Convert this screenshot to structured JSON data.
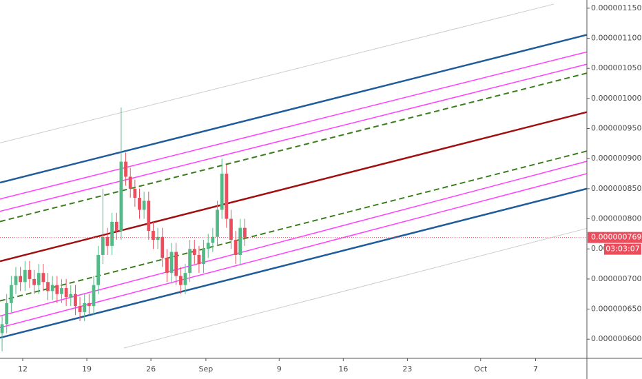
{
  "chart_data": {
    "type": "candlestick",
    "x": [
      -2.25,
      -1.75,
      -1.25,
      -0.75,
      -0.25,
      0.25,
      0.75,
      1.25,
      1.75,
      2.25,
      2.75,
      3.25,
      3.75,
      4.25,
      4.75,
      5.25,
      5.75,
      6.25,
      6.75,
      7.25,
      7.75,
      8.25,
      8.75,
      9.25,
      9.75,
      10.25,
      10.75,
      11.25,
      11.75,
      12.25,
      12.75,
      13.25,
      13.75,
      14.25,
      14.75,
      15.25,
      15.75,
      16.25,
      16.75,
      17.25,
      17.75,
      18.25,
      18.75,
      19.25,
      19.75,
      20.25,
      20.75,
      21.25,
      21.75,
      22.25,
      22.75,
      23.25,
      23.75,
      24.25
    ],
    "open": [
      6.1e-07,
      6.25e-07,
      6.6e-07,
      6.9e-07,
      7.05e-07,
      6.95e-07,
      7.15e-07,
      7e-07,
      6.9e-07,
      7.1e-07,
      6.95e-07,
      6.8e-07,
      6.9e-07,
      6.75e-07,
      6.85e-07,
      6.7e-07,
      6.75e-07,
      6.55e-07,
      6.45e-07,
      6.6e-07,
      6.55e-07,
      6.9e-07,
      7.4e-07,
      7.7e-07,
      7.55e-07,
      7.95e-07,
      7.8e-07,
      8.95e-07,
      8.7e-07,
      8.5e-07,
      8.35e-07,
      8.15e-07,
      8.3e-07,
      7.8e-07,
      7.65e-07,
      7.7e-07,
      7.35e-07,
      7.1e-07,
      7.45e-07,
      7.05e-07,
      6.9e-07,
      7.1e-07,
      7.5e-07,
      7.4e-07,
      7.25e-07,
      7.5e-07,
      7.6e-07,
      7.7e-07,
      8.15e-07,
      8.75e-07,
      8e-07,
      7.65e-07,
      7.4e-07,
      7.85e-07
    ],
    "high": [
      6.4e-07,
      6.75e-07,
      7.05e-07,
      7.2e-07,
      7.2e-07,
      7.3e-07,
      7.3e-07,
      7.15e-07,
      7.25e-07,
      7.25e-07,
      7.1e-07,
      7.05e-07,
      7.05e-07,
      7e-07,
      7e-07,
      6.9e-07,
      6.9e-07,
      6.7e-07,
      6.75e-07,
      6.75e-07,
      7.05e-07,
      7.55e-07,
      8.5e-07,
      7.85e-07,
      8.1e-07,
      8.1e-07,
      9.85e-07,
      9.1e-07,
      8.85e-07,
      8.65e-07,
      8.5e-07,
      8.45e-07,
      8.45e-07,
      7.95e-07,
      7.85e-07,
      7.85e-07,
      7.5e-07,
      7.6e-07,
      7.6e-07,
      7.2e-07,
      7.25e-07,
      7.65e-07,
      7.65e-07,
      7.55e-07,
      7.65e-07,
      7.75e-07,
      7.85e-07,
      8.3e-07,
      9e-07,
      8.9e-07,
      8.15e-07,
      7.8e-07,
      8e-07,
      8e-07
    ],
    "low": [
      5.8e-07,
      6.1e-07,
      6.45e-07,
      6.75e-07,
      6.8e-07,
      6.8e-07,
      6.85e-07,
      6.75e-07,
      6.75e-07,
      6.8e-07,
      6.65e-07,
      6.65e-07,
      6.6e-07,
      6.6e-07,
      6.55e-07,
      6.55e-07,
      6.4e-07,
      6.3e-07,
      6.3e-07,
      6.4e-07,
      6.4e-07,
      6.75e-07,
      7.25e-07,
      7.4e-07,
      7.4e-07,
      7.65e-07,
      7.65e-07,
      8.55e-07,
      8.35e-07,
      8.2e-07,
      8e-07,
      8e-07,
      7.65e-07,
      7.5e-07,
      7.5e-07,
      7.2e-07,
      6.95e-07,
      6.95e-07,
      6.9e-07,
      6.75e-07,
      6.75e-07,
      6.95e-07,
      7.25e-07,
      7.1e-07,
      7.1e-07,
      7.35e-07,
      7.45e-07,
      7.55e-07,
      8e-07,
      7.85e-07,
      7.5e-07,
      7.25e-07,
      7.25e-07,
      7.55e-07
    ],
    "close": [
      6.25e-07,
      6.6e-07,
      6.9e-07,
      7.05e-07,
      6.95e-07,
      7.15e-07,
      7e-07,
      6.9e-07,
      7.1e-07,
      6.95e-07,
      6.8e-07,
      6.9e-07,
      6.75e-07,
      6.85e-07,
      6.7e-07,
      6.75e-07,
      6.55e-07,
      6.45e-07,
      6.6e-07,
      6.55e-07,
      6.9e-07,
      7.4e-07,
      7.7e-07,
      7.55e-07,
      7.95e-07,
      7.8e-07,
      8.95e-07,
      8.7e-07,
      8.5e-07,
      8.35e-07,
      8.15e-07,
      8.3e-07,
      7.8e-07,
      7.65e-07,
      7.7e-07,
      7.35e-07,
      7.1e-07,
      7.45e-07,
      7.05e-07,
      6.9e-07,
      7.1e-07,
      7.5e-07,
      7.4e-07,
      7.25e-07,
      7.5e-07,
      7.6e-07,
      7.7e-07,
      8.15e-07,
      8.75e-07,
      8e-07,
      7.65e-07,
      7.4e-07,
      7.85e-07,
      7.69e-07
    ],
    "up_color": "#53b987",
    "down_color": "#eb4d5c",
    "xlim": [
      -2.48,
      61.6
    ],
    "xticks": [
      {
        "value": 0,
        "label": "12"
      },
      {
        "value": 7,
        "label": "19"
      },
      {
        "value": 14,
        "label": "26"
      },
      {
        "value": 20,
        "label": "Sep"
      },
      {
        "value": 28,
        "label": "9"
      },
      {
        "value": 35,
        "label": "16"
      },
      {
        "value": 42,
        "label": "23"
      },
      {
        "value": 50,
        "label": "Oct"
      },
      {
        "value": 56,
        "label": "7"
      }
    ],
    "ylim": [
      5.682e-07,
      1.1636e-06
    ],
    "yticks": [
      {
        "value": 6e-07,
        "label": "0.0000006000"
      },
      {
        "value": 6.5e-07,
        "label": "0.0000006500"
      },
      {
        "value": 7e-07,
        "label": "0.0000007000"
      },
      {
        "value": 7.5e-07,
        "label": "0.0000007500"
      },
      {
        "value": 8e-07,
        "label": "0.0000008000"
      },
      {
        "value": 8.5e-07,
        "label": "0.0000008500"
      },
      {
        "value": 9e-07,
        "label": "0.0000009000"
      },
      {
        "value": 9.5e-07,
        "label": "0.0000009500"
      },
      {
        "value": 1e-06,
        "label": "0.0000010000"
      },
      {
        "value": 1.05e-06,
        "label": "0.0000010500"
      },
      {
        "value": 1.1e-06,
        "label": "0.0000011000"
      },
      {
        "value": 1.15e-06,
        "label": "0.0000011500"
      }
    ],
    "lines": [
      {
        "color": "#cccccc",
        "width": 1,
        "dash": false,
        "x": [
          -2.48,
          58.0
        ],
        "y": [
          9.261e-07,
          1.1568e-06
        ]
      },
      {
        "color": "#cccccc",
        "width": 1,
        "dash": false,
        "x": [
          11.05,
          61.58
        ],
        "y": [
          5.852e-07,
          7.841e-07
        ]
      },
      {
        "color": "#1f5c99",
        "width": 2.5,
        "dash": false,
        "x": [
          -2.48,
          61.58
        ],
        "y": [
          8.602e-07,
          1.1057e-06
        ]
      },
      {
        "color": "#1f5c99",
        "width": 2.5,
        "dash": false,
        "x": [
          -2.48,
          61.58
        ],
        "y": [
          6.023e-07,
          8.5e-07
        ]
      },
      {
        "color": "#ff40ff",
        "width": 1.5,
        "dash": false,
        "x": [
          -2.48,
          61.58
        ],
        "y": [
          8.33e-07,
          1.0773e-06
        ]
      },
      {
        "color": "#ff40ff",
        "width": 1.5,
        "dash": false,
        "x": [
          -2.48,
          61.58
        ],
        "y": [
          8.125e-07,
          1.0568e-06
        ]
      },
      {
        "color": "#ff40ff",
        "width": 1.5,
        "dash": false,
        "x": [
          -2.48,
          61.58
        ],
        "y": [
          6.386e-07,
          8.955e-07
        ]
      },
      {
        "color": "#ff40ff",
        "width": 1.5,
        "dash": false,
        "x": [
          -2.48,
          61.58
        ],
        "y": [
          6.193e-07,
          8.75e-07
        ]
      },
      {
        "color": "#3a7d1c",
        "width": 2,
        "dash": true,
        "x": [
          -2.48,
          61.58
        ],
        "y": [
          7.955e-07,
          1.042e-06
        ]
      },
      {
        "color": "#3a7d1c",
        "width": 2,
        "dash": true,
        "x": [
          -2.48,
          61.58
        ],
        "y": [
          6.636e-07,
          9.125e-07
        ]
      },
      {
        "color": "#a01010",
        "width": 2.5,
        "dash": false,
        "x": [
          -2.48,
          61.58
        ],
        "y": [
          7.295e-07,
          9.773e-07
        ]
      }
    ],
    "last_price": {
      "value": 7.69e-07,
      "label": "0.0000007690",
      "color": "#eb4d5c"
    },
    "countdown": "03:03:07"
  }
}
